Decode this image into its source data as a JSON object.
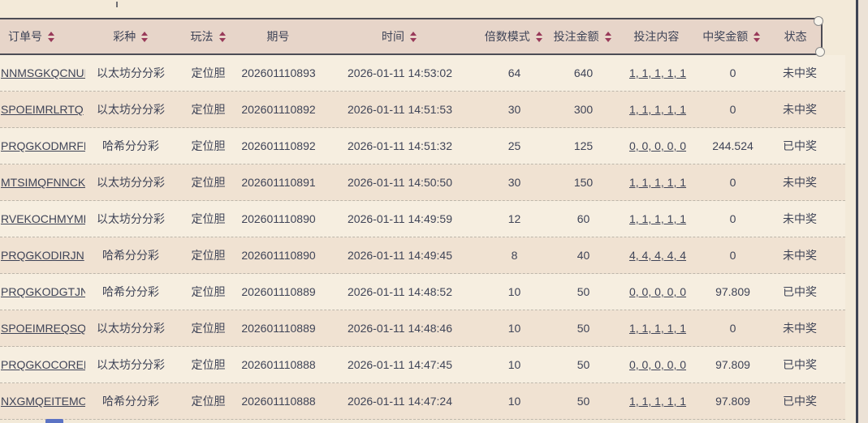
{
  "table": {
    "columns": [
      {
        "key": "order_no",
        "label": "订单号",
        "sortable": true
      },
      {
        "key": "lottery",
        "label": "彩种",
        "sortable": true
      },
      {
        "key": "play",
        "label": "玩法",
        "sortable": true
      },
      {
        "key": "period",
        "label": "期号",
        "sortable": false
      },
      {
        "key": "time",
        "label": "时间",
        "sortable": true
      },
      {
        "key": "multiplier",
        "label": "倍数模式",
        "sortable": true
      },
      {
        "key": "bet_amount",
        "label": "投注金额",
        "sortable": true
      },
      {
        "key": "bet_content",
        "label": "投注内容",
        "sortable": false
      },
      {
        "key": "win_amount",
        "label": "中奖金额",
        "sortable": true
      },
      {
        "key": "status",
        "label": "状态",
        "sortable": false
      }
    ],
    "rows": [
      {
        "order_no": "NNMSGKQCNUL",
        "lottery": "以太坊分分彩",
        "play": "定位胆",
        "period": "202601110893",
        "time": "2026-01-11 14:53:02",
        "multiplier": "64",
        "bet_amount": "640",
        "bet_content": "1, 1, 1, 1, 1",
        "win_amount": "0",
        "status": "未中奖"
      },
      {
        "order_no": "SPOEIMRLRTQ",
        "lottery": "以太坊分分彩",
        "play": "定位胆",
        "period": "202601110892",
        "time": "2026-01-11 14:51:53",
        "multiplier": "30",
        "bet_amount": "300",
        "bet_content": "1, 1, 1, 1, 1",
        "win_amount": "0",
        "status": "未中奖"
      },
      {
        "order_no": "PRQGKODMRFN",
        "lottery": "哈希分分彩",
        "play": "定位胆",
        "period": "202601110892",
        "time": "2026-01-11 14:51:32",
        "multiplier": "25",
        "bet_amount": "125",
        "bet_content": "0, 0, 0, 0, 0",
        "win_amount": "244.524",
        "status": "已中奖"
      },
      {
        "order_no": "MTSIMQFNNCK",
        "lottery": "以太坊分分彩",
        "play": "定位胆",
        "period": "202601110891",
        "time": "2026-01-11 14:50:50",
        "multiplier": "30",
        "bet_amount": "150",
        "bet_content": "1, 1, 1, 1, 1",
        "win_amount": "0",
        "status": "未中奖"
      },
      {
        "order_no": "RVEKOCHMYMP",
        "lottery": "以太坊分分彩",
        "play": "定位胆",
        "period": "202601110890",
        "time": "2026-01-11 14:49:59",
        "multiplier": "12",
        "bet_amount": "60",
        "bet_content": "1, 1, 1, 1, 1",
        "win_amount": "0",
        "status": "未中奖"
      },
      {
        "order_no": "PRQGKODIRJN",
        "lottery": "哈希分分彩",
        "play": "定位胆",
        "period": "202601110890",
        "time": "2026-01-11 14:49:45",
        "multiplier": "8",
        "bet_amount": "40",
        "bet_content": "4, 4, 4, 4, 4",
        "win_amount": "0",
        "status": "未中奖"
      },
      {
        "order_no": "PRQGKODGTJN",
        "lottery": "哈希分分彩",
        "play": "定位胆",
        "period": "202601110889",
        "time": "2026-01-11 14:48:52",
        "multiplier": "10",
        "bet_amount": "50",
        "bet_content": "0, 0, 0, 0, 0",
        "win_amount": "97.809",
        "status": "已中奖"
      },
      {
        "order_no": "SPOEIMREQSQ",
        "lottery": "以太坊分分彩",
        "play": "定位胆",
        "period": "202601110889",
        "time": "2026-01-11 14:48:46",
        "multiplier": "10",
        "bet_amount": "50",
        "bet_content": "1, 1, 1, 1, 1",
        "win_amount": "0",
        "status": "未中奖"
      },
      {
        "order_no": "PRQGKOCOREN",
        "lottery": "以太坊分分彩",
        "play": "定位胆",
        "period": "202601110888",
        "time": "2026-01-11 14:47:45",
        "multiplier": "10",
        "bet_amount": "50",
        "bet_content": "0, 0, 0, 0, 0",
        "win_amount": "97.809",
        "status": "已中奖"
      },
      {
        "order_no": "NXGMQEITEMO",
        "lottery": "哈希分分彩",
        "play": "定位胆",
        "period": "202601110888",
        "time": "2026-01-11 14:47:24",
        "multiplier": "10",
        "bet_amount": "50",
        "bet_content": "1, 1, 1, 1, 1",
        "win_amount": "97.809",
        "status": "已中奖"
      }
    ]
  },
  "colors": {
    "page_bg": "#f3ead9",
    "header_bg": "#e7d5c9",
    "row_bg": "#f6eee0",
    "row_alt_bg": "#f0e2d2",
    "text": "#3f4457",
    "sort_arrow": "#993a5a",
    "selection_border": "#4c4c55",
    "window_edge": "#3e4353",
    "pagination_active": "#5b73c4"
  }
}
